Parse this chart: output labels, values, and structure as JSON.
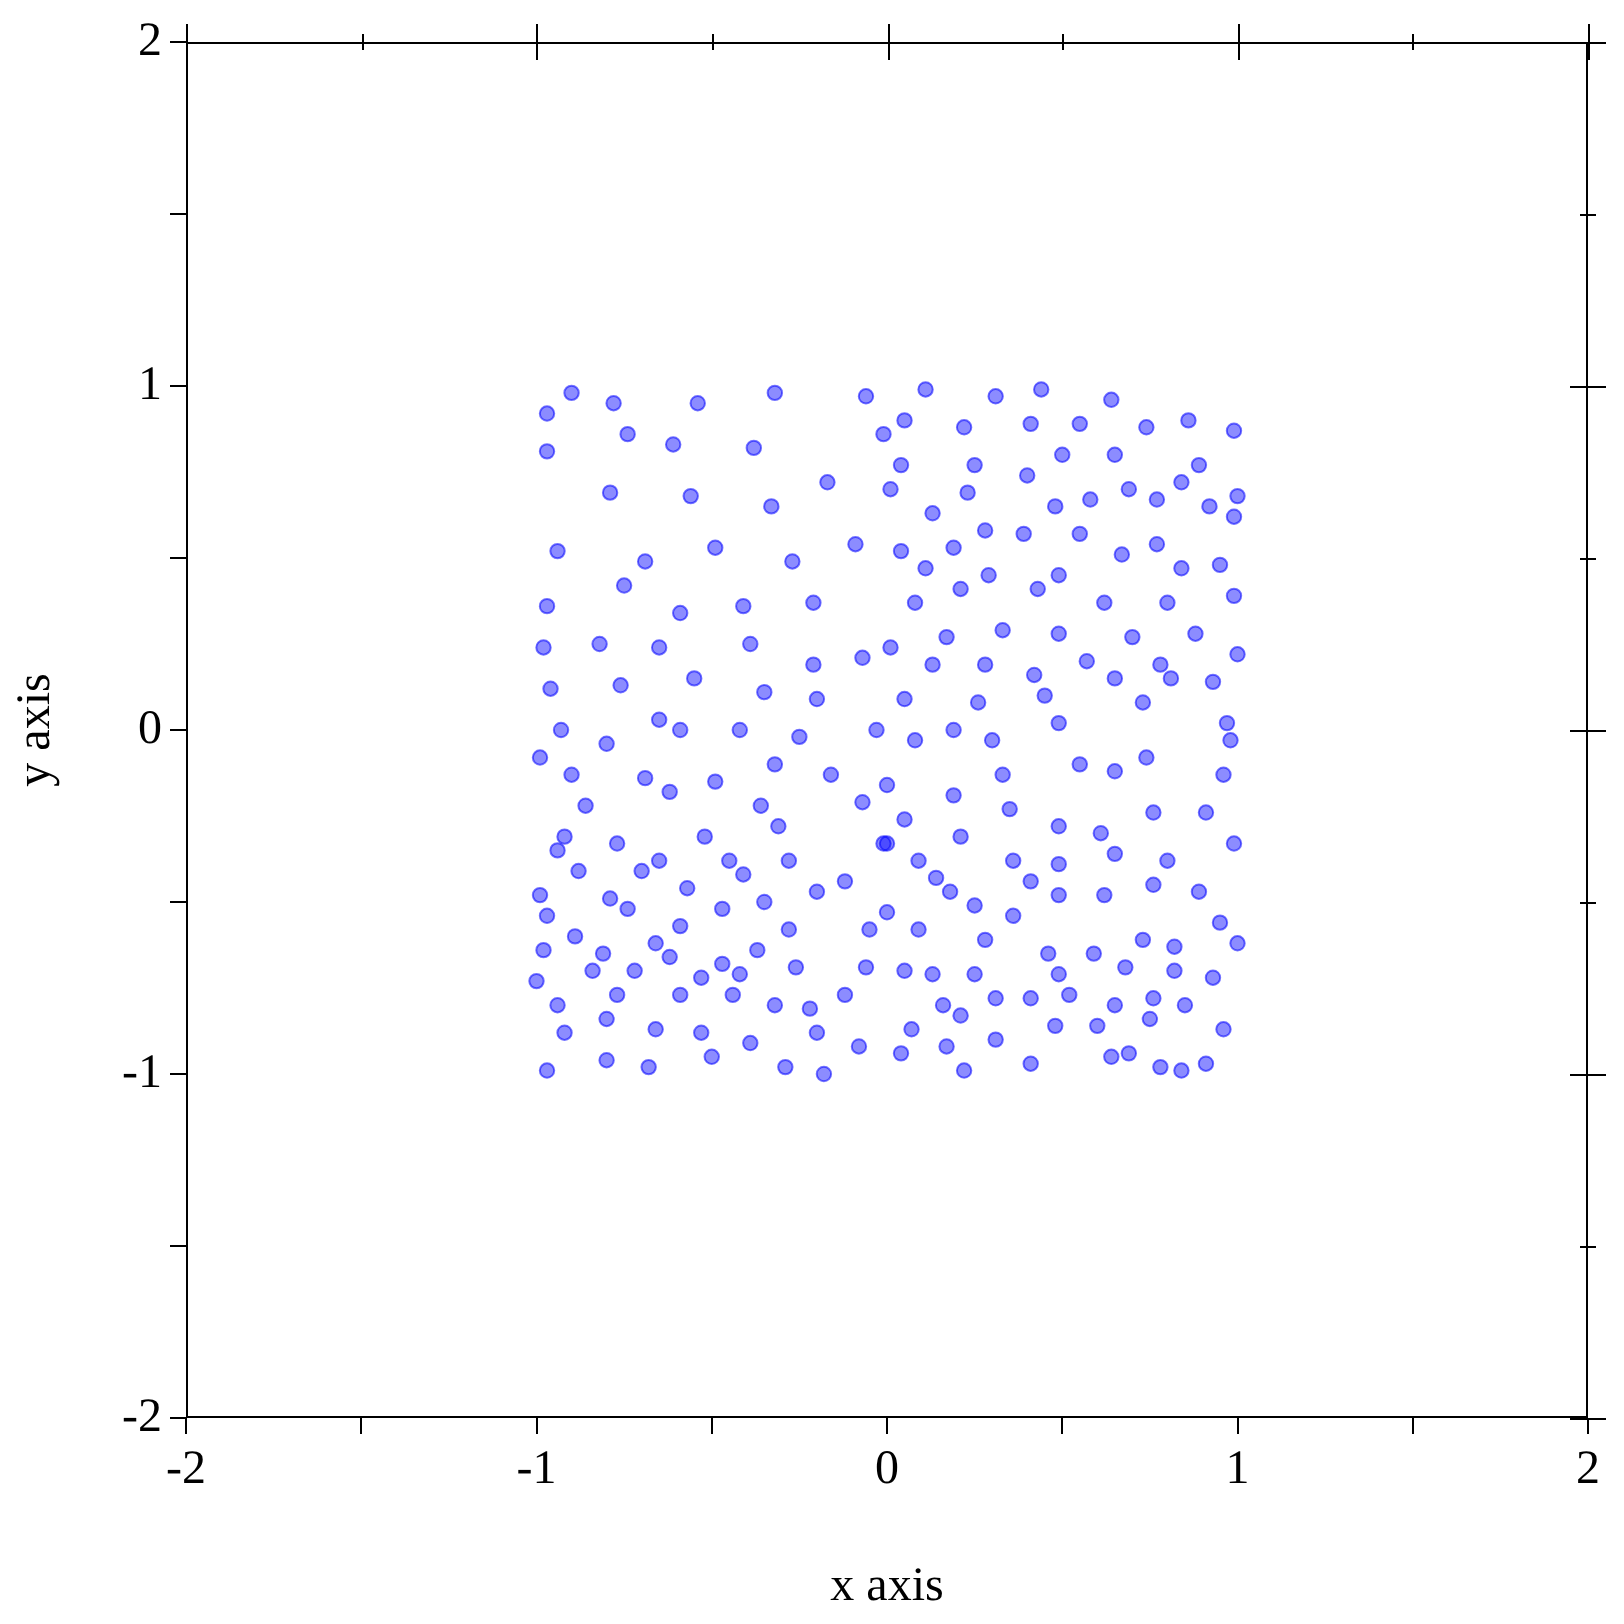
{
  "chart_data": {
    "type": "scatter",
    "xlabel": "x axis",
    "ylabel": "y axis",
    "marker": "circle",
    "xlim": [
      -2,
      2
    ],
    "ylim": [
      -2,
      2
    ],
    "xticks": [
      -2,
      {
        "value": -1.5,
        "label": null
      },
      -1,
      {
        "value": -0.5,
        "label": null
      },
      0,
      {
        "value": 0.5,
        "label": null
      },
      1,
      {
        "value": 1.5,
        "label": null
      },
      2
    ],
    "yticks": [
      -2,
      {
        "value": -1.5,
        "label": null
      },
      -1,
      {
        "value": -0.5,
        "label": null
      },
      0,
      {
        "value": 0.5,
        "label": null
      },
      1,
      {
        "value": 1.5,
        "label": null
      },
      2
    ],
    "series": [
      {
        "color": "#0000ff",
        "x": [
          -0.9,
          -0.97,
          -0.78,
          -0.54,
          -0.32,
          -0.06,
          -0.97,
          -0.74,
          -0.61,
          -0.38,
          -0.17,
          -0.01,
          -0.79,
          -0.56,
          -0.33,
          -0.09,
          -0.94,
          -0.69,
          -0.49,
          -0.27,
          -0.97,
          -0.75,
          -0.59,
          -0.41,
          -0.21,
          -0.98,
          -0.82,
          -0.65,
          -0.39,
          -0.21,
          -0.07,
          -0.96,
          -0.76,
          -0.55,
          -0.35,
          -0.2,
          -0.93,
          -0.65,
          -0.42,
          0.11,
          0.31,
          0.44,
          0.64,
          0.86,
          0.99,
          0.05,
          0.22,
          0.41,
          0.55,
          0.74,
          0.04,
          0.25,
          0.5,
          0.65,
          0.89,
          0.01,
          0.23,
          0.4,
          0.69,
          0.84,
          1.0,
          0.13,
          0.28,
          0.48,
          0.58,
          0.77,
          0.92,
          0.04,
          0.19,
          0.39,
          0.55,
          0.77,
          0.99,
          0.11,
          0.29,
          0.49,
          0.67,
          0.84,
          0.95,
          0.08,
          0.21,
          0.43,
          0.62,
          0.8,
          0.99,
          0.01,
          0.17,
          0.33,
          0.49,
          0.7,
          0.88,
          1.0,
          0.13,
          0.28,
          0.42,
          0.57,
          0.78,
          0.05,
          0.26,
          0.45,
          0.65,
          0.81,
          0.93,
          0.19,
          0.49,
          0.73,
          0.97,
          -0.99,
          -0.8,
          -0.59,
          -0.25,
          -0.03,
          -0.9,
          -0.69,
          -0.49,
          -0.32,
          -0.16,
          -0.86,
          -0.62,
          -0.36,
          -0.07,
          -0.92,
          -0.77,
          -0.52,
          -0.31,
          -0.01,
          -0.94,
          -0.65,
          -0.45,
          -0.28,
          -0.88,
          -0.7,
          -0.41,
          -0.12,
          -0.99,
          -0.79,
          -0.57,
          -0.35,
          -0.2,
          -0.97,
          -0.74,
          -0.59,
          -0.47,
          -0.28,
          -0.05,
          -0.89,
          -0.66,
          -0.37,
          -0.98,
          -0.81,
          -0.62,
          -0.47,
          -0.26,
          -0.06,
          -1.0,
          -0.84,
          -0.72,
          -0.53,
          -0.42,
          -0.12,
          -0.94,
          -0.77,
          -0.59,
          -0.44,
          -0.32,
          -0.22,
          -0.92,
          -0.8,
          -0.66,
          -0.53,
          -0.39,
          -0.2,
          -0.08,
          -0.97,
          -0.8,
          -0.68,
          -0.5,
          -0.29,
          -0.18,
          0.08,
          0.3,
          0.74,
          0.98,
          0.0,
          0.19,
          0.33,
          0.55,
          0.65,
          0.96,
          0.05,
          0.21,
          0.35,
          0.49,
          0.61,
          0.76,
          0.91,
          0.0,
          0.36,
          0.49,
          0.65,
          0.8,
          0.99,
          0.09,
          0.14,
          0.41,
          0.62,
          0.76,
          0.89,
          0.0,
          0.18,
          0.49,
          0.25,
          0.36,
          0.09,
          0.28,
          0.46,
          0.59,
          0.73,
          0.82,
          0.95,
          1.0,
          0.13,
          0.05,
          0.25,
          0.49,
          0.68,
          0.82,
          0.93,
          0.16,
          0.31,
          0.41,
          0.52,
          0.65,
          0.76,
          0.85,
          0.07,
          0.21,
          0.31,
          0.48,
          0.6,
          0.75,
          0.96,
          0.04,
          0.17,
          0.41,
          0.64,
          0.69,
          0.78,
          0.84,
          0.91,
          0.22
        ],
        "values": [
          0.98,
          0.92,
          0.95,
          0.95,
          0.98,
          0.97,
          0.81,
          0.86,
          0.83,
          0.82,
          0.72,
          0.86,
          0.69,
          0.68,
          0.65,
          0.54,
          0.52,
          0.49,
          0.53,
          0.49,
          0.36,
          0.42,
          0.34,
          0.36,
          0.37,
          0.24,
          0.25,
          0.24,
          0.25,
          0.19,
          0.21,
          0.12,
          0.13,
          0.15,
          0.11,
          0.09,
          0.0,
          0.03,
          0.0,
          0.99,
          0.97,
          0.99,
          0.96,
          0.9,
          0.87,
          0.9,
          0.88,
          0.89,
          0.89,
          0.88,
          0.77,
          0.77,
          0.8,
          0.8,
          0.77,
          0.7,
          0.69,
          0.74,
          0.7,
          0.72,
          0.68,
          0.63,
          0.58,
          0.65,
          0.67,
          0.67,
          0.65,
          0.52,
          0.53,
          0.57,
          0.57,
          0.54,
          0.62,
          0.47,
          0.45,
          0.45,
          0.51,
          0.47,
          0.48,
          0.37,
          0.41,
          0.41,
          0.37,
          0.37,
          0.39,
          0.24,
          0.27,
          0.29,
          0.28,
          0.27,
          0.28,
          0.22,
          0.19,
          0.19,
          0.16,
          0.2,
          0.19,
          0.09,
          0.08,
          0.1,
          0.15,
          0.15,
          0.14,
          0.0,
          0.02,
          0.08,
          0.02,
          -0.08,
          -0.04,
          0.0,
          -0.02,
          0.0,
          -0.13,
          -0.14,
          -0.15,
          -0.1,
          -0.13,
          -0.22,
          -0.18,
          -0.22,
          -0.21,
          -0.31,
          -0.33,
          -0.31,
          -0.28,
          -0.33,
          -0.35,
          -0.38,
          -0.38,
          -0.38,
          -0.41,
          -0.41,
          -0.42,
          -0.44,
          -0.48,
          -0.49,
          -0.46,
          -0.5,
          -0.47,
          -0.54,
          -0.52,
          -0.57,
          -0.52,
          -0.58,
          -0.58,
          -0.6,
          -0.62,
          -0.64,
          -0.64,
          -0.65,
          -0.66,
          -0.68,
          -0.69,
          -0.69,
          -0.73,
          -0.7,
          -0.7,
          -0.72,
          -0.71,
          -0.77,
          -0.8,
          -0.77,
          -0.77,
          -0.77,
          -0.8,
          -0.81,
          -0.88,
          -0.84,
          -0.87,
          -0.88,
          -0.91,
          -0.88,
          -0.92,
          -0.99,
          -0.96,
          -0.98,
          -0.95,
          -0.98,
          -1.0,
          -0.03,
          -0.03,
          -0.08,
          -0.03,
          -0.16,
          -0.19,
          -0.13,
          -0.1,
          -0.12,
          -0.13,
          -0.26,
          -0.31,
          -0.23,
          -0.28,
          -0.3,
          -0.24,
          -0.24,
          -0.33,
          -0.38,
          -0.39,
          -0.36,
          -0.38,
          -0.33,
          -0.38,
          -0.43,
          -0.44,
          -0.48,
          -0.45,
          -0.47,
          -0.53,
          -0.47,
          -0.48,
          -0.51,
          -0.54,
          -0.58,
          -0.61,
          -0.65,
          -0.65,
          -0.61,
          -0.63,
          -0.56,
          -0.62,
          -0.71,
          -0.7,
          -0.71,
          -0.71,
          -0.69,
          -0.7,
          -0.72,
          -0.8,
          -0.78,
          -0.78,
          -0.77,
          -0.8,
          -0.78,
          -0.8,
          -0.87,
          -0.83,
          -0.9,
          -0.86,
          -0.86,
          -0.84,
          -0.87,
          -0.94,
          -0.92,
          -0.97,
          -0.95,
          -0.94,
          -0.98,
          -0.99,
          -0.97,
          -0.99
        ]
      }
    ]
  }
}
